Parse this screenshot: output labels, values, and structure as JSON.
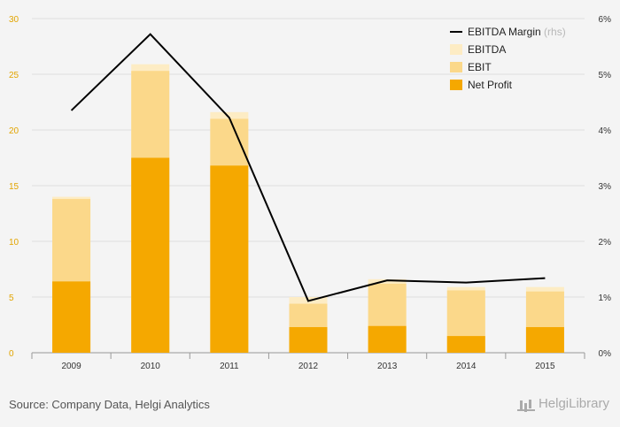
{
  "chart_data": {
    "type": "bar",
    "categories": [
      "2009",
      "2010",
      "2011",
      "2012",
      "2013",
      "2014",
      "2015"
    ],
    "series": [
      {
        "name": "Net Profit",
        "kind": "bar",
        "axis": "left",
        "values": [
          6.4,
          17.5,
          16.8,
          2.3,
          2.4,
          1.5,
          2.3
        ],
        "color": "#f5a800"
      },
      {
        "name": "EBIT",
        "kind": "bar",
        "axis": "left",
        "values": [
          13.8,
          25.3,
          21.0,
          4.4,
          6.2,
          5.6,
          5.5
        ],
        "color": "#fbd88a"
      },
      {
        "name": "EBITDA",
        "kind": "bar",
        "axis": "left",
        "values": [
          14.0,
          25.9,
          21.6,
          5.0,
          6.6,
          5.9,
          5.9
        ],
        "color": "#fdecc4"
      },
      {
        "name": "EBITDA Margin",
        "kind": "line",
        "axis": "right",
        "values": [
          4.35,
          5.72,
          4.22,
          0.93,
          1.3,
          1.26,
          1.34
        ],
        "color": "#000000"
      }
    ],
    "legend": [
      {
        "label": "EBITDA Margin",
        "note": "(rhs)",
        "kind": "line",
        "color": "#000000"
      },
      {
        "label": "EBITDA",
        "kind": "box",
        "color": "#fdecc4"
      },
      {
        "label": "EBIT",
        "kind": "box",
        "color": "#fbd88a"
      },
      {
        "label": "Net Profit",
        "kind": "box",
        "color": "#f5a800"
      }
    ],
    "legend_position": "top-right",
    "ylim": [
      0,
      30
    ],
    "yticks": [
      "0",
      "5",
      "10",
      "15",
      "20",
      "25",
      "30"
    ],
    "ylim_right": [
      0,
      6
    ],
    "yticks_right": [
      "0%",
      "1%",
      "2%",
      "3%",
      "4%",
      "5%",
      "6%"
    ],
    "grid": true
  },
  "footer": {
    "source": "Source: Company Data, Helgi Analytics",
    "brand": "HelgiLibrary"
  }
}
